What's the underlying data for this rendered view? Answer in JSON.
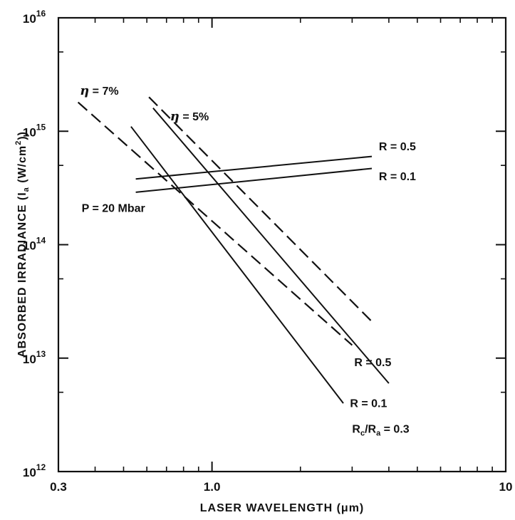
{
  "chart_data": {
    "type": "line",
    "title": "",
    "xlabel": "LASER WAVELENGTH (μm)",
    "ylabel_main": "ABSORBED IRRADIANCE (I",
    "ylabel_sub": "a",
    "ylabel_units": " (W/cm",
    "ylabel_sup": "2",
    "ylabel_close": "))",
    "x_scale": "log",
    "y_scale": "log",
    "xlim": [
      0.3,
      10
    ],
    "ylim": [
      1000000000000.0,
      1e+16
    ],
    "grid": false,
    "x_ticks": [
      {
        "value": 0.3,
        "label": "0.3"
      },
      {
        "value": 1.0,
        "label": "1.0"
      },
      {
        "value": 10,
        "label": "10"
      }
    ],
    "x_minor_ticks": [
      0.4,
      0.5,
      0.6,
      0.7,
      0.8,
      0.9,
      2,
      3,
      4,
      5,
      6,
      7,
      8,
      9
    ],
    "y_ticks": [
      {
        "value": 1000000000000.0,
        "base": "10",
        "exp": "12"
      },
      {
        "value": 10000000000000.0,
        "base": "10",
        "exp": "13"
      },
      {
        "value": 100000000000000.0,
        "base": "10",
        "exp": "14"
      },
      {
        "value": 1000000000000000.0,
        "base": "10",
        "exp": "15"
      },
      {
        "value": 1e+16,
        "base": "10",
        "exp": "16"
      }
    ],
    "y_minor_ticks": [
      5000000000000.0,
      50000000000000.0,
      500000000000000.0,
      5000000000000000.0
    ],
    "series": [
      {
        "style": "solid",
        "x": [
          0.53,
          2.8
        ],
        "y": [
          1100000000000000.0,
          4000000000000.0
        ]
      },
      {
        "style": "solid",
        "x": [
          0.63,
          4.0
        ],
        "y": [
          1600000000000000.0,
          6000000000000.0
        ]
      },
      {
        "style": "dashed",
        "x": [
          0.35,
          3.0
        ],
        "y": [
          1800000000000000.0,
          13000000000000.0
        ]
      },
      {
        "style": "dashed",
        "x": [
          0.61,
          3.5
        ],
        "y": [
          2000000000000000.0,
          21000000000000.0
        ]
      },
      {
        "style": "solid",
        "x": [
          0.55,
          3.5
        ],
        "y": [
          380000000000000.0,
          600000000000000.0
        ]
      },
      {
        "style": "solid",
        "x": [
          0.55,
          3.5
        ],
        "y": [
          290000000000000.0,
          470000000000000.0
        ]
      }
    ],
    "annotations": [
      {
        "id": "eta-7",
        "greek": "η",
        "text": " = 7%",
        "x": 0.355,
        "y": 2100000000000000.0
      },
      {
        "id": "eta-5",
        "greek": "η",
        "text": " = 5%",
        "x": 0.72,
        "y": 1250000000000000.0
      },
      {
        "id": "r05-top",
        "text": "R = 0.5",
        "x": 3.7,
        "y": 680000000000000.0
      },
      {
        "id": "r01-top",
        "text": "R = 0.1",
        "x": 3.7,
        "y": 370000000000000.0
      },
      {
        "id": "p-20",
        "text": "P = 20 Mbar",
        "x": 0.36,
        "y": 195000000000000.0
      },
      {
        "id": "r05-bottom",
        "text": "R  =  0.5",
        "x": 3.05,
        "y": 8500000000000.0
      },
      {
        "id": "r01-bottom",
        "text": "R  =  0.1",
        "x": 2.95,
        "y": 3700000000000.0
      },
      {
        "id": "rc-ra",
        "text": "R",
        "sub1": "c",
        "mid": "/R",
        "sub2": "a",
        "tail": " = 0.3",
        "x": 3.0,
        "y": 2200000000000.0
      }
    ]
  }
}
